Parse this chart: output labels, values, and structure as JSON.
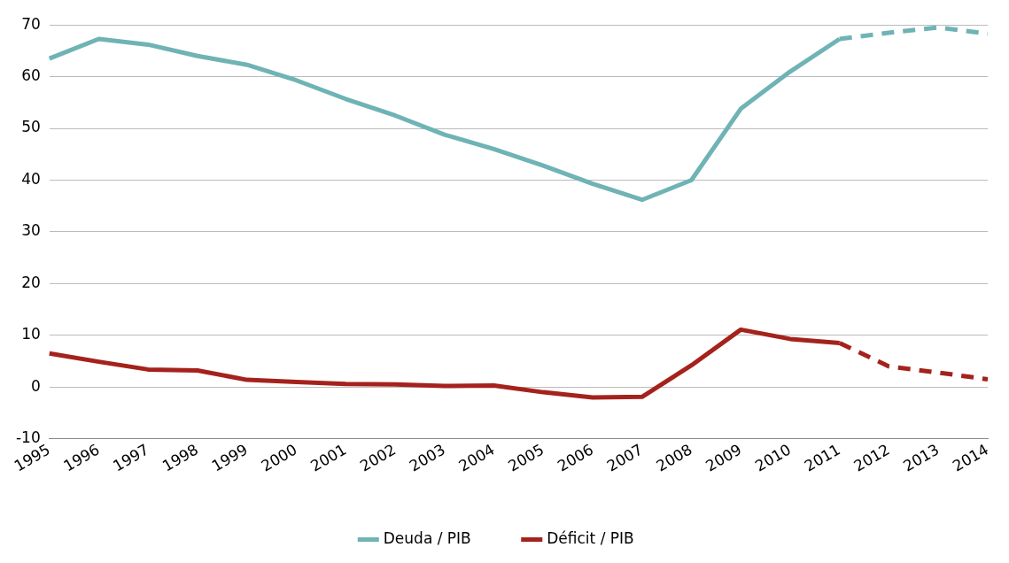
{
  "chart_data": {
    "type": "line",
    "categories": [
      "1995",
      "1996",
      "1997",
      "1998",
      "1999",
      "2000",
      "2001",
      "2002",
      "2003",
      "2004",
      "2005",
      "2006",
      "2007",
      "2008",
      "2009",
      "2010",
      "2011",
      "2012",
      "2013",
      "2014"
    ],
    "series": [
      {
        "name": "Deuda / PIB",
        "color": "#6fb3b5",
        "line_style": "solid",
        "values": [
          63.5,
          67.3,
          66.2,
          64,
          62.3,
          59.3,
          55.7,
          52.5,
          48.8,
          46,
          42.8,
          39.3,
          36.2,
          40,
          53.8,
          61,
          67.3,
          null,
          null,
          null
        ]
      },
      {
        "color": "#6fb3b5",
        "line_style": "dashed",
        "values": [
          null,
          null,
          null,
          null,
          null,
          null,
          null,
          null,
          null,
          null,
          null,
          null,
          null,
          null,
          null,
          null,
          67.3,
          68.5,
          69.5,
          68.3
        ]
      },
      {
        "name": "Déficit / PIB",
        "color": "#a5221c",
        "line_style": "solid",
        "values": [
          6.5,
          4.9,
          3.4,
          3.2,
          1.4,
          1.0,
          0.6,
          0.5,
          0.2,
          0.3,
          -1.0,
          -2.0,
          -1.9,
          4.2,
          11.1,
          9.3,
          8.5,
          null,
          null,
          null
        ]
      },
      {
        "color": "#a5221c",
        "line_style": "dashed",
        "values": [
          null,
          null,
          null,
          null,
          null,
          null,
          null,
          null,
          null,
          null,
          null,
          null,
          null,
          null,
          null,
          null,
          8.5,
          4.0,
          2.8,
          1.5
        ]
      }
    ],
    "ylim": [
      -10,
      70
    ],
    "yticks": [
      -10,
      0,
      10,
      20,
      30,
      40,
      50,
      60,
      70
    ],
    "grid": "y",
    "legend": "bottom",
    "marker": "none"
  }
}
